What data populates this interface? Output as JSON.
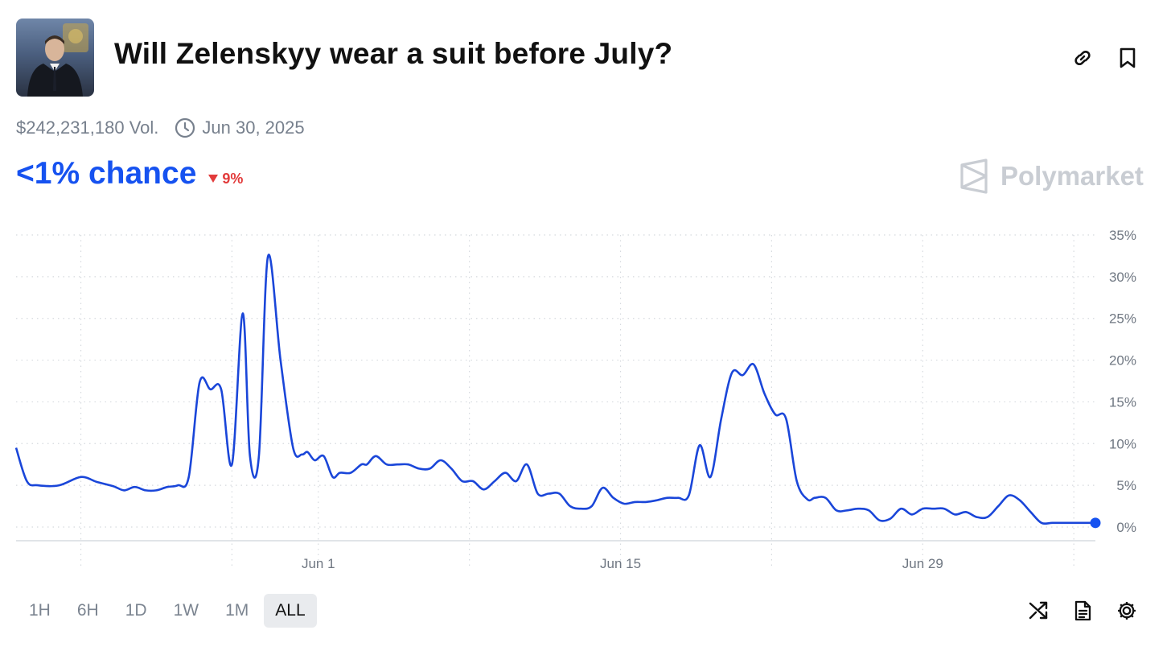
{
  "market": {
    "title": "Will Zelenskyy wear a suit before July?",
    "volume": "$242,231,180 Vol.",
    "end_date": "Jun 30, 2025",
    "chance": "<1% chance",
    "change": "9%",
    "brand": "Polymarket"
  },
  "icons": {
    "link": "link-icon",
    "bookmark": "bookmark-icon",
    "clock": "clock-icon",
    "change_direction": "triangle-down-icon",
    "brand_logo": "polymarket-logo",
    "shuffle": "shuffle-icon",
    "document": "document-icon",
    "settings": "gear-icon"
  },
  "colors": {
    "accent": "#1652f0",
    "negative": "#e23b3b",
    "muted": "#77808d",
    "brand_watermark": "#c9cdd3",
    "line": "#1a46d9"
  },
  "time_ranges": [
    {
      "label": "1H",
      "active": false
    },
    {
      "label": "6H",
      "active": false
    },
    {
      "label": "1D",
      "active": false
    },
    {
      "label": "1W",
      "active": false
    },
    {
      "label": "1M",
      "active": false
    },
    {
      "label": "ALL",
      "active": true
    }
  ],
  "chart_data": {
    "type": "line",
    "title": "",
    "xlabel": "",
    "ylabel": "",
    "x_range": [
      "2025-05-19",
      "2025-07-06"
    ],
    "ylim": [
      0,
      35
    ],
    "y_ticks": [
      "35%",
      "30%",
      "25%",
      "20%",
      "15%",
      "10%",
      "5%",
      "0%"
    ],
    "y_tick_values": [
      35,
      30,
      25,
      20,
      15,
      10,
      5,
      0
    ],
    "x_ticks": [
      {
        "label": "Jun 1",
        "date": "2025-06-01"
      },
      {
        "label": "Jun 15",
        "date": "2025-06-15"
      },
      {
        "label": "Jun 29",
        "date": "2025-06-29"
      }
    ],
    "gridline_dates": [
      "2025-05-21",
      "2025-05-28",
      "2025-06-01",
      "2025-06-08",
      "2025-06-15",
      "2025-06-22",
      "2025-06-29",
      "2025-07-06"
    ],
    "grid": true,
    "series": [
      {
        "x": [
          "2025-05-18 00:00",
          "2025-05-18 12:00",
          "2025-05-19 00:00",
          "2025-05-20 00:00",
          "2025-05-21 00:00",
          "2025-05-21 18:00",
          "2025-05-22 12:00",
          "2025-05-23 00:00",
          "2025-05-23 12:00",
          "2025-05-24 00:00",
          "2025-05-24 12:00",
          "2025-05-25 00:00",
          "2025-05-25 12:00",
          "2025-05-26 00:00",
          "2025-05-26 12:00",
          "2025-05-27 00:00",
          "2025-05-27 12:00",
          "2025-05-28 00:00",
          "2025-05-28 12:00",
          "2025-05-28 20:00",
          "2025-05-29 06:00",
          "2025-05-29 16:00",
          "2025-05-30 06:00",
          "2025-05-30 20:00",
          "2025-05-31 06:00",
          "2025-05-31 12:00",
          "2025-05-31 20:00",
          "2025-06-01 06:00",
          "2025-06-01 16:00",
          "2025-06-02 00:00",
          "2025-06-02 12:00",
          "2025-06-03 00:00",
          "2025-06-03 06:00",
          "2025-06-03 16:00",
          "2025-06-04 04:00",
          "2025-06-04 16:00",
          "2025-06-05 04:00",
          "2025-06-05 16:00",
          "2025-06-06 04:00",
          "2025-06-06 16:00",
          "2025-06-07 04:00",
          "2025-06-07 16:00",
          "2025-06-08 04:00",
          "2025-06-08 16:00",
          "2025-06-09 04:00",
          "2025-06-09 16:00",
          "2025-06-10 04:00",
          "2025-06-10 16:00",
          "2025-06-11 04:00",
          "2025-06-11 16:00",
          "2025-06-12 04:00",
          "2025-06-12 16:00",
          "2025-06-13 04:00",
          "2025-06-13 16:00",
          "2025-06-14 04:00",
          "2025-06-14 16:00",
          "2025-06-15 04:00",
          "2025-06-15 16:00",
          "2025-06-16 04:00",
          "2025-06-16 16:00",
          "2025-06-17 04:00",
          "2025-06-17 16:00",
          "2025-06-18 04:00",
          "2025-06-18 16:00",
          "2025-06-19 04:00",
          "2025-06-19 16:00",
          "2025-06-20 04:00",
          "2025-06-20 16:00",
          "2025-06-21 04:00",
          "2025-06-21 16:00",
          "2025-06-22 04:00",
          "2025-06-22 16:00",
          "2025-06-23 04:00",
          "2025-06-23 16:00",
          "2025-06-24 00:00",
          "2025-06-24 12:00",
          "2025-06-25 00:00",
          "2025-06-25 12:00",
          "2025-06-26 00:00",
          "2025-06-26 12:00",
          "2025-06-27 00:00",
          "2025-06-27 12:00",
          "2025-06-28 00:00",
          "2025-06-28 12:00",
          "2025-06-29 00:00",
          "2025-06-29 12:00",
          "2025-06-30 00:00",
          "2025-06-30 12:00",
          "2025-07-01 00:00",
          "2025-07-01 12:00",
          "2025-07-02 00:00",
          "2025-07-02 12:00",
          "2025-07-03 00:00",
          "2025-07-03 12:00",
          "2025-07-04 00:00",
          "2025-07-04 12:00",
          "2025-07-05 00:00",
          "2025-07-05 12:00",
          "2025-07-06 00:00",
          "2025-07-06 12:00",
          "2025-07-07 00:00"
        ],
        "values": [
          9.5,
          5.5,
          5.0,
          5.0,
          6.0,
          5.4,
          4.9,
          4.4,
          4.8,
          4.4,
          4.4,
          4.8,
          5.0,
          6.0,
          17.3,
          16.5,
          16.5,
          7.5,
          25.6,
          8.5,
          8.5,
          32.4,
          20.0,
          9.5,
          8.7,
          9.0,
          8.0,
          8.5,
          6.0,
          6.5,
          6.5,
          7.5,
          7.5,
          8.5,
          7.5,
          7.5,
          7.5,
          7.0,
          7.0,
          8.0,
          7.0,
          5.5,
          5.5,
          4.5,
          5.5,
          6.5,
          5.5,
          7.5,
          4.0,
          4.0,
          4.0,
          2.5,
          2.2,
          2.5,
          4.7,
          3.5,
          2.8,
          3.0,
          3.0,
          3.2,
          3.5,
          3.5,
          3.8,
          9.8,
          6.0,
          13.0,
          18.5,
          18.2,
          19.5,
          16.0,
          13.5,
          13.0,
          5.5,
          3.3,
          3.5,
          3.5,
          2.0,
          2.0,
          2.2,
          2.0,
          0.8,
          1.0,
          2.2,
          1.5,
          2.2,
          2.2,
          2.2,
          1.5,
          1.8,
          1.2,
          1.2,
          2.5,
          3.8,
          3.2,
          1.8,
          0.5,
          0.5,
          0.5,
          0.5,
          0.5,
          0.5
        ]
      }
    ],
    "current_value": 0.5
  }
}
